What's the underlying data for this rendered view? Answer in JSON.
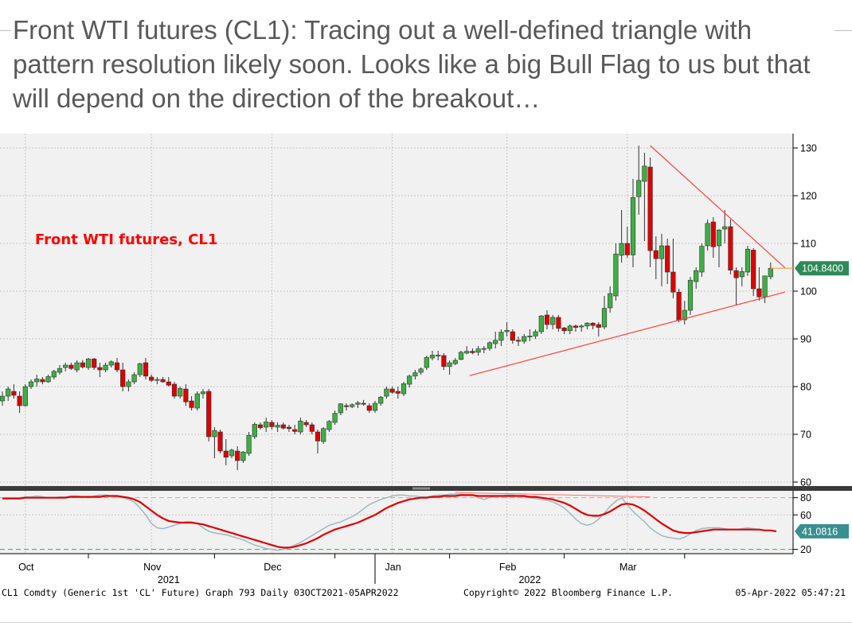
{
  "slide": {
    "title": "Front WTI futures (CL1): Tracing out a well-defined triangle with pattern resolution likely soon. Looks like a big Bull Flag to us but that will depend on the direction of the breakout…"
  },
  "chart_data": {
    "type": "candlestick",
    "annotation": "Front WTI futures, CL1",
    "price_axis": {
      "ticks": [
        60,
        70,
        80,
        90,
        100,
        110,
        120,
        130
      ],
      "ylim": [
        59,
        133
      ],
      "side": "right"
    },
    "last_price_label": "104.8400",
    "oscillator": {
      "ticks": [
        20,
        60,
        80
      ],
      "ylim": [
        15,
        88
      ],
      "reference_lines": [
        80,
        20
      ],
      "last_value_label": "41.0816",
      "fast_line": [
        80,
        80,
        80,
        80,
        81,
        81,
        82,
        81,
        80,
        80,
        81,
        81,
        82,
        82,
        81,
        80,
        82,
        83,
        83,
        82,
        81,
        80,
        78,
        75,
        68,
        60,
        50,
        45,
        44,
        46,
        48,
        50,
        52,
        52,
        50,
        45,
        41,
        39,
        38,
        37,
        35,
        33,
        31,
        28,
        25,
        23,
        21,
        20,
        19,
        20,
        22,
        25,
        28,
        32,
        36,
        40,
        44,
        48,
        50,
        52,
        55,
        58,
        62,
        67,
        72,
        75,
        78,
        80,
        82,
        83,
        83,
        82,
        82,
        81,
        81,
        82,
        83,
        83,
        84,
        84,
        84,
        83,
        83,
        80,
        78,
        80,
        82,
        82,
        83,
        83,
        82,
        81,
        80,
        79,
        78,
        77,
        75,
        72,
        68,
        62,
        55,
        50,
        48,
        50,
        55,
        62,
        70,
        76,
        80,
        72,
        64,
        58,
        52,
        45,
        40,
        36,
        34,
        33,
        32,
        34,
        38,
        42,
        44,
        45,
        45,
        45,
        44,
        43,
        43,
        44,
        45,
        44,
        43,
        42,
        42,
        41
      ],
      "slow_line": [
        79,
        79,
        79,
        79,
        80,
        80,
        80,
        80,
        80,
        80,
        80,
        80,
        81,
        81,
        81,
        81,
        81,
        81,
        82,
        82,
        82,
        81,
        80,
        78,
        75,
        70,
        65,
        60,
        56,
        53,
        52,
        51,
        51,
        51,
        50,
        49,
        47,
        45,
        43,
        41,
        39,
        37,
        35,
        33,
        31,
        29,
        27,
        25,
        23,
        22,
        22,
        23,
        25,
        27,
        30,
        33,
        37,
        40,
        43,
        45,
        47,
        49,
        51,
        54,
        57,
        60,
        64,
        68,
        71,
        74,
        76,
        78,
        79,
        80,
        80,
        81,
        81,
        82,
        82,
        82,
        83,
        83,
        83,
        82,
        82,
        82,
        82,
        82,
        82,
        82,
        82,
        82,
        81,
        81,
        80,
        79,
        78,
        76,
        74,
        71,
        67,
        63,
        60,
        59,
        59,
        61,
        64,
        68,
        72,
        73,
        72,
        69,
        65,
        60,
        55,
        50,
        46,
        42,
        40,
        39,
        39,
        40,
        41,
        42,
        43,
        43,
        43,
        43,
        43,
        43,
        43,
        43,
        43,
        42,
        42,
        41
      ]
    },
    "x_axis": {
      "months": [
        {
          "label": "Oct",
          "index": 4
        },
        {
          "label": "Nov",
          "index": 26
        },
        {
          "label": "Dec",
          "index": 47
        },
        {
          "label": "Jan",
          "index": 68
        },
        {
          "label": "Feb",
          "index": 88
        },
        {
          "label": "Mar",
          "index": 109
        }
      ],
      "years": [
        {
          "label": "2021",
          "index": 29
        },
        {
          "label": "2022",
          "index": 92
        }
      ]
    },
    "ohlc": [
      [
        77,
        79,
        76,
        78
      ],
      [
        78,
        80,
        77,
        79.5
      ],
      [
        79,
        80.5,
        77.5,
        78.2
      ],
      [
        78,
        79,
        74.5,
        76
      ],
      [
        76,
        80.5,
        75.8,
        80
      ],
      [
        80,
        81.5,
        79.5,
        81
      ],
      [
        81,
        82.5,
        80,
        81.6
      ],
      [
        81.5,
        82,
        80.5,
        81
      ],
      [
        81,
        82.5,
        80.8,
        82.1
      ],
      [
        82,
        83.5,
        81.5,
        83.2
      ],
      [
        83,
        84.5,
        82.5,
        83.8
      ],
      [
        84,
        85,
        83.2,
        84.5
      ],
      [
        84.5,
        85,
        83.5,
        83.8
      ],
      [
        83.5,
        85.5,
        83,
        85
      ],
      [
        85,
        85.6,
        83.8,
        84.1
      ],
      [
        84,
        86,
        83.5,
        85.8
      ],
      [
        85.8,
        86,
        83.5,
        84
      ],
      [
        84,
        85,
        82,
        83.5
      ],
      [
        83.5,
        85,
        83,
        84.5
      ],
      [
        84.5,
        85.5,
        84,
        85.2
      ],
      [
        85,
        86,
        83,
        83.5
      ],
      [
        83.5,
        85,
        79,
        80
      ],
      [
        80,
        81.5,
        79,
        81
      ],
      [
        81,
        83,
        80.5,
        82.5
      ],
      [
        82.5,
        85,
        82,
        84.8
      ],
      [
        85,
        86,
        81.5,
        82.2
      ],
      [
        82,
        82.5,
        81,
        81.3
      ],
      [
        81.5,
        82,
        80.5,
        81.5
      ],
      [
        81.5,
        82,
        80.8,
        81
      ],
      [
        81,
        82,
        80,
        80.3
      ],
      [
        80.5,
        81,
        77.5,
        78
      ],
      [
        78,
        80,
        77.5,
        79.6
      ],
      [
        79.5,
        80.5,
        76,
        76.8
      ],
      [
        77,
        78,
        75,
        75.6
      ],
      [
        75.5,
        79,
        75,
        78.5
      ],
      [
        78.5,
        79.5,
        77.5,
        78.9
      ],
      [
        79,
        79.5,
        68.5,
        69.5
      ],
      [
        69.5,
        71.5,
        65,
        70.8
      ],
      [
        70.5,
        71,
        66,
        66.5
      ],
      [
        66.5,
        69,
        63.5,
        65.2
      ],
      [
        65.5,
        67,
        65,
        66.7
      ],
      [
        66.5,
        67.5,
        62.5,
        64.5
      ],
      [
        64.5,
        66.5,
        64,
        66.3
      ],
      [
        66,
        70.5,
        65.5,
        69.8
      ],
      [
        69.5,
        72.5,
        69,
        72.1
      ],
      [
        72,
        72.5,
        71,
        71.4
      ],
      [
        71.5,
        73.5,
        70.5,
        72.6
      ],
      [
        72.5,
        73,
        71,
        71.6
      ],
      [
        71.5,
        72.5,
        70.5,
        71.9
      ],
      [
        72,
        72.5,
        71,
        71.3
      ],
      [
        71.5,
        72,
        70.5,
        71.2
      ],
      [
        71,
        72,
        70,
        70.6
      ],
      [
        70.5,
        73.5,
        70,
        72.8
      ],
      [
        72.5,
        73,
        71.5,
        72
      ],
      [
        72,
        72.5,
        70,
        70.6
      ],
      [
        70.5,
        71,
        66,
        68.6
      ],
      [
        68.5,
        71.5,
        68,
        71.2
      ],
      [
        71,
        73,
        70.5,
        72.7
      ],
      [
        72.5,
        75,
        72,
        74.4
      ],
      [
        74.5,
        76.5,
        74,
        76.4
      ],
      [
        76,
        76.5,
        75,
        75.8
      ],
      [
        75.8,
        76.5,
        75.5,
        76.2
      ],
      [
        76.3,
        77,
        75.5,
        76.6
      ],
      [
        76.5,
        77.2,
        76,
        76.3
      ],
      [
        76,
        76.5,
        74.5,
        75
      ],
      [
        75,
        77,
        74.5,
        76.5
      ],
      [
        76.5,
        78,
        76,
        77.8
      ],
      [
        78,
        80,
        77.5,
        79.5
      ],
      [
        79.5,
        80,
        78.5,
        78.8
      ],
      [
        79,
        80,
        77.5,
        78.6
      ],
      [
        78.5,
        81,
        78,
        80.6
      ],
      [
        80.5,
        82.5,
        79.8,
        82.2
      ],
      [
        82.2,
        83.5,
        81.5,
        82.9
      ],
      [
        83,
        84,
        82.5,
        83.7
      ],
      [
        84,
        86.5,
        83.5,
        86.1
      ],
      [
        86,
        87.5,
        85.5,
        86.6
      ],
      [
        86.5,
        87.5,
        85.5,
        86.6
      ],
      [
        86.5,
        87,
        83.5,
        84.2
      ],
      [
        84.2,
        85.5,
        82.5,
        85
      ],
      [
        84.8,
        86,
        84.5,
        85.5
      ],
      [
        85.7,
        87.5,
        85.5,
        87.2
      ],
      [
        87,
        88.5,
        86.8,
        87.4
      ],
      [
        87.4,
        88,
        86.8,
        87.1
      ],
      [
        87.2,
        88.5,
        86.5,
        87.9
      ],
      [
        87.8,
        88.5,
        87,
        88
      ],
      [
        88,
        89.5,
        87.5,
        89.2
      ],
      [
        89,
        91.5,
        88,
        89.7
      ],
      [
        89.7,
        92,
        88.5,
        91.4
      ],
      [
        91.5,
        93.5,
        90.5,
        91.8
      ],
      [
        91.5,
        92,
        89,
        89.7
      ],
      [
        89.7,
        90.5,
        88.5,
        89.5
      ],
      [
        89.5,
        91,
        89,
        90.5
      ],
      [
        90.5,
        92,
        89.5,
        90.6
      ],
      [
        90.6,
        92,
        90,
        91.5
      ],
      [
        91.5,
        95,
        91,
        94.8
      ],
      [
        95,
        96,
        92,
        93
      ],
      [
        93,
        95,
        92,
        94.5
      ],
      [
        94.5,
        95,
        91.5,
        92.2
      ],
      [
        92.3,
        92.5,
        91,
        91.7
      ],
      [
        91.7,
        93,
        91,
        92.7
      ],
      [
        92.7,
        93,
        91.5,
        92.4
      ],
      [
        92.5,
        93,
        91.5,
        92.7
      ],
      [
        92.7,
        93.5,
        92,
        93.3
      ],
      [
        93.3,
        93.5,
        92,
        92.8
      ],
      [
        93,
        93.5,
        90.5,
        92.4
      ],
      [
        92.5,
        99,
        92,
        96.4
      ],
      [
        96.5,
        101,
        95.5,
        99.5
      ],
      [
        99,
        110,
        98,
        107.8
      ],
      [
        107.5,
        117,
        106,
        110
      ],
      [
        110,
        113.5,
        107,
        107.6
      ],
      [
        107.6,
        123.5,
        105,
        119.6
      ],
      [
        119.8,
        130.5,
        116,
        123.2
      ],
      [
        123,
        129,
        110.5,
        126.2
      ],
      [
        126,
        128,
        105,
        108.5
      ],
      [
        108.5,
        111.5,
        102.5,
        106.8
      ],
      [
        106.8,
        112,
        101,
        109.5
      ],
      [
        109.5,
        111,
        101.5,
        104
      ],
      [
        104,
        111,
        98.5,
        99.8
      ],
      [
        99.8,
        100.5,
        93.5,
        93.9
      ],
      [
        94,
        98,
        93,
        96
      ],
      [
        96,
        103,
        95,
        102.3
      ],
      [
        102,
        105,
        100.5,
        104.3
      ],
      [
        104,
        110,
        103,
        109.4
      ],
      [
        109.5,
        115,
        108.5,
        114.2
      ],
      [
        114.5,
        115.5,
        107,
        109.3
      ],
      [
        109.5,
        113,
        105,
        112.8
      ],
      [
        113,
        117,
        110,
        113.5
      ],
      [
        113.5,
        115,
        103.5,
        104.4
      ],
      [
        104.3,
        105,
        97,
        102.8
      ],
      [
        103,
        105,
        101,
        104.1
      ],
      [
        104,
        109.5,
        103.2,
        108.8
      ],
      [
        108.6,
        109,
        99,
        100.5
      ],
      [
        100.5,
        105,
        98,
        98.8
      ],
      [
        98.8,
        103,
        97.5,
        103.2
      ],
      [
        103,
        106,
        102.5,
        104.8
      ]
    ],
    "footer": {
      "left": "CL1 Comdty (Generic 1st 'CL' Future) Graph 793  Daily 03OCT2021-05APR2022",
      "center": "Copyright© 2022 Bloomberg Finance L.P.",
      "right": "05-Apr-2022 05:47:21"
    },
    "colors": {
      "up": "#3cb043",
      "down": "#e00000",
      "trendline": "#ff3b3b",
      "price_label_bg": "#2e8b57",
      "osc_fast": "#e00000",
      "osc_slow": "#9fb8c4",
      "ref80": "#f0a070",
      "ref20": "#3cb043"
    }
  }
}
